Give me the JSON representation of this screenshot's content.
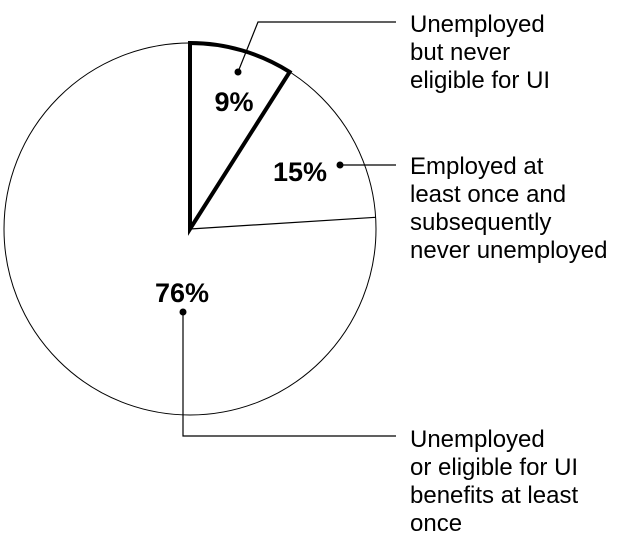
{
  "chart_data": {
    "type": "pie",
    "title": "",
    "slices": [
      {
        "value": 9,
        "label": "9%",
        "legend": [
          "Unemployed",
          "but never",
          "eligible for UI"
        ],
        "highlighted": true
      },
      {
        "value": 15,
        "label": "15%",
        "legend": [
          "Employed at",
          "least once and",
          "subsequently",
          "never unemployed"
        ],
        "highlighted": false
      },
      {
        "value": 76,
        "label": "76%",
        "legend": [
          "Unemployed",
          "or eligible for UI",
          "benefits at least",
          "once"
        ],
        "highlighted": false
      }
    ],
    "start_angle_deg": 0,
    "direction": "clockwise",
    "colors": {
      "fill": "#ffffff",
      "stroke": "#000000"
    }
  }
}
